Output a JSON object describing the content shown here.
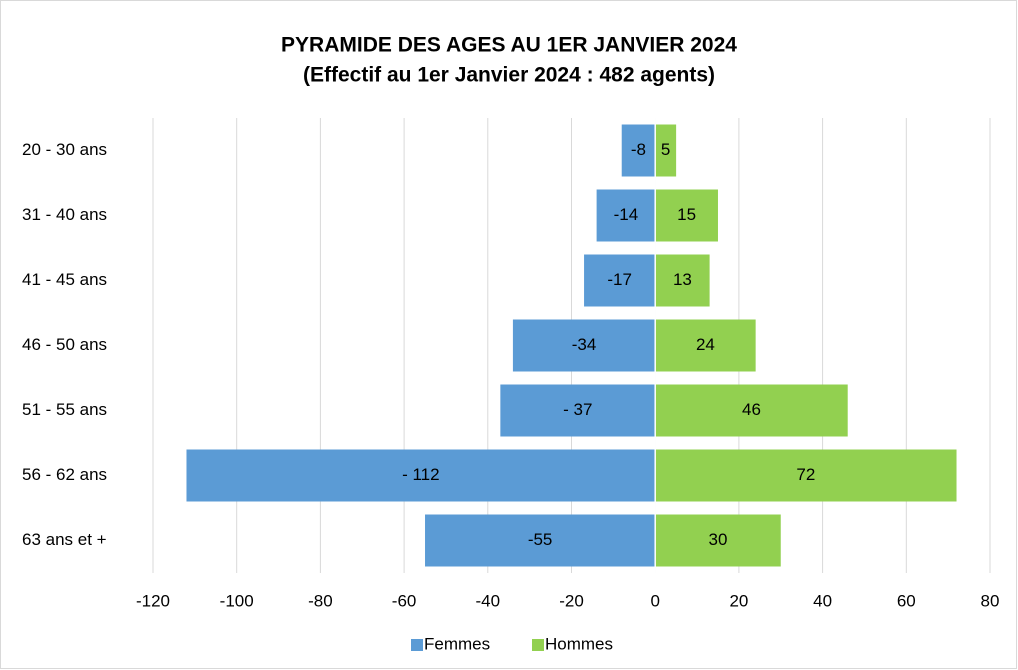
{
  "chart_data": {
    "type": "pyramid",
    "title": "PYRAMIDE DES AGES AU 1ER JANVIER 2024",
    "subtitle": "(Effectif au 1er Janvier 2024 : 482 agents)",
    "categories": [
      "20 - 30 ans",
      "31 - 40 ans",
      "41 - 45 ans",
      "46 - 50 ans",
      "51 - 55 ans",
      "56 - 62 ans",
      "63 ans et +"
    ],
    "series": [
      {
        "name": "Femmes",
        "color": "#5b9bd5",
        "values": [
          -8,
          -14,
          -17,
          -34,
          -37,
          -112,
          -55
        ],
        "value_labels": [
          "-8",
          "-14",
          "-17",
          "-34",
          "- 37",
          "- 112",
          "-55"
        ]
      },
      {
        "name": "Hommes",
        "color": "#92d050",
        "values": [
          5,
          15,
          13,
          24,
          46,
          72,
          30
        ]
      }
    ],
    "xlim": [
      -120,
      80
    ],
    "xticks": [
      -120,
      -100,
      -80,
      -60,
      -40,
      -20,
      0,
      20,
      40,
      60,
      80
    ],
    "grid": true,
    "legend": "bottom"
  }
}
